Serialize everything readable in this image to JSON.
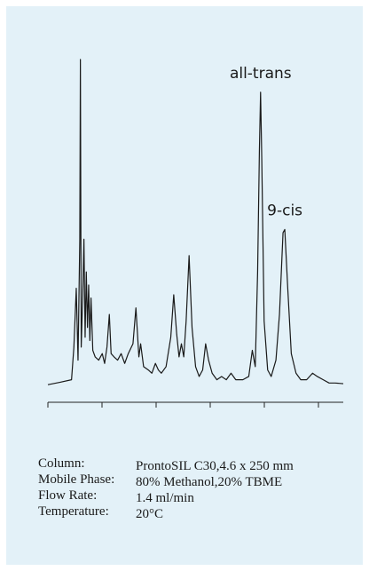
{
  "chart_data": {
    "type": "line",
    "title": "",
    "xlabel": "",
    "ylabel": "",
    "x_ticks": [
      "",
      "",
      "",
      "",
      "",
      ""
    ],
    "xlim": [
      0,
      25
    ],
    "ylim": [
      0,
      100
    ],
    "series": [
      {
        "values": [
          [
            0.0,
            0.5
          ],
          [
            1.0,
            1.2
          ],
          [
            2.0,
            2.0
          ],
          [
            2.2,
            12
          ],
          [
            2.4,
            30
          ],
          [
            2.55,
            8
          ],
          [
            2.7,
            45
          ],
          [
            2.75,
            100
          ],
          [
            2.82,
            12
          ],
          [
            2.95,
            28
          ],
          [
            3.05,
            45
          ],
          [
            3.15,
            15
          ],
          [
            3.25,
            35
          ],
          [
            3.35,
            18
          ],
          [
            3.45,
            31
          ],
          [
            3.55,
            14
          ],
          [
            3.65,
            27
          ],
          [
            3.8,
            11
          ],
          [
            4.0,
            9
          ],
          [
            4.3,
            8
          ],
          [
            4.6,
            10
          ],
          [
            4.8,
            7
          ],
          [
            5.0,
            12
          ],
          [
            5.2,
            22
          ],
          [
            5.35,
            10
          ],
          [
            5.6,
            9
          ],
          [
            5.9,
            8
          ],
          [
            6.2,
            10
          ],
          [
            6.5,
            7
          ],
          [
            6.8,
            10
          ],
          [
            7.2,
            13
          ],
          [
            7.45,
            24
          ],
          [
            7.7,
            9
          ],
          [
            7.85,
            13
          ],
          [
            8.1,
            6
          ],
          [
            8.5,
            5
          ],
          [
            8.8,
            4
          ],
          [
            9.1,
            7
          ],
          [
            9.35,
            5
          ],
          [
            9.6,
            4
          ],
          [
            10.0,
            6
          ],
          [
            10.4,
            15
          ],
          [
            10.65,
            28
          ],
          [
            10.9,
            16
          ],
          [
            11.1,
            9
          ],
          [
            11.3,
            13
          ],
          [
            11.5,
            9
          ],
          [
            11.7,
            20
          ],
          [
            11.95,
            40
          ],
          [
            12.2,
            18
          ],
          [
            12.5,
            6
          ],
          [
            12.8,
            3
          ],
          [
            13.1,
            5
          ],
          [
            13.35,
            13
          ],
          [
            13.6,
            8
          ],
          [
            13.9,
            4
          ],
          [
            14.3,
            2
          ],
          [
            14.7,
            3
          ],
          [
            15.1,
            2
          ],
          [
            15.5,
            4
          ],
          [
            15.9,
            2
          ],
          [
            16.5,
            2
          ],
          [
            17.0,
            3
          ],
          [
            17.3,
            11
          ],
          [
            17.55,
            6
          ],
          [
            17.75,
            35
          ],
          [
            17.9,
            72
          ],
          [
            18.0,
            90
          ],
          [
            18.1,
            70
          ],
          [
            18.3,
            20
          ],
          [
            18.6,
            5
          ],
          [
            18.9,
            3
          ],
          [
            19.3,
            8
          ],
          [
            19.6,
            22
          ],
          [
            19.9,
            47
          ],
          [
            20.05,
            48
          ],
          [
            20.3,
            30
          ],
          [
            20.6,
            10
          ],
          [
            21.0,
            4
          ],
          [
            21.4,
            2
          ],
          [
            21.9,
            2
          ],
          [
            22.4,
            4
          ],
          [
            22.8,
            3
          ],
          [
            23.3,
            2
          ],
          [
            23.8,
            1
          ],
          [
            24.3,
            1
          ],
          [
            25.0,
            0.8
          ]
        ]
      }
    ],
    "annotations": [
      {
        "text": "all-trans",
        "x": 18.0,
        "y": 90
      },
      {
        "text": "9-cis",
        "x": 20.05,
        "y": 48
      }
    ]
  },
  "conditions": [
    {
      "label": "Column:",
      "value": "ProntoSIL C30,4.6 x 250 mm"
    },
    {
      "label": "Mobile Phase:",
      "value": "80% Methanol,20% TBME"
    },
    {
      "label": "Flow Rate:",
      "value": "1.4 ml/min"
    },
    {
      "label": "Temperature:",
      "value": "20°C"
    }
  ]
}
